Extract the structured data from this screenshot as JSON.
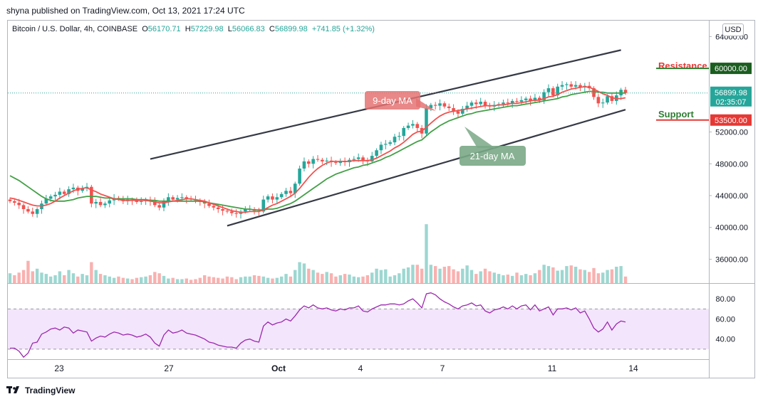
{
  "header": {
    "published": "shyna published on TradingView.com, Oct 13, 2021 17:24 UTC"
  },
  "legend": {
    "symbol": "Bitcoin / U.S. Dollar, 4h, COINBASE",
    "o_label": "O",
    "o": "56170.71",
    "h_label": "H",
    "h": "57229.98",
    "l_label": "L",
    "l": "56066.83",
    "c_label": "C",
    "c": "56899.98",
    "change": "+741.85 (+1.32%)"
  },
  "currency": "USD",
  "footer": {
    "brand": "TradingView",
    "logo": "tradingview-logo-icon"
  },
  "colors": {
    "up": "#26a69a",
    "down": "#ef5350",
    "ma9": "#ef5350",
    "ma21": "#43a047",
    "rsi": "#9c27b0",
    "rsi_band": "#f3e5fb",
    "resistance": "#e53935",
    "support": "#2e7d32",
    "price_badge": "#26a69a",
    "support_badge": "#e53935",
    "resistance_badge": "#1b5e20"
  },
  "annotations": {
    "resistance_label": "Resistance",
    "support_label": "Support",
    "ma9_label": "9-day MA",
    "ma21_label": "21-day MA"
  },
  "price_badges": {
    "current": "56899.98",
    "countdown": "02:35:07",
    "support": "53500.00",
    "resistance": "60000.00"
  },
  "chart_data": {
    "type": "candlestick",
    "timeframe": "4h",
    "xlabels": [
      "23",
      "27",
      "Oct",
      "4",
      "7",
      "11",
      "14"
    ],
    "ylim": [
      33000,
      66000
    ],
    "yticks": [
      "64000.00",
      "52000.00",
      "48000.00",
      "44000.00",
      "40000.00",
      "36000.00"
    ],
    "rsi_ylim": [
      20,
      95
    ],
    "rsi_ticks": [
      "80.00",
      "60.00",
      "40.00"
    ],
    "rsi_bands": [
      70,
      30
    ],
    "resistance": 60000,
    "support": 53500,
    "close": [
      43300,
      43100,
      42800,
      42300,
      42000,
      41700,
      42300,
      43000,
      43600,
      43900,
      44100,
      44500,
      44200,
      44800,
      45000,
      44600,
      44900,
      45100,
      43000,
      43200,
      42800,
      43000,
      43400,
      43700,
      43600,
      43300,
      43500,
      43400,
      43200,
      43300,
      43500,
      43300,
      42800,
      42500,
      43300,
      43800,
      43500,
      43700,
      43800,
      43600,
      43500,
      43400,
      43200,
      43000,
      42700,
      42500,
      42300,
      42100,
      42000,
      41800,
      41700,
      42000,
      42300,
      42300,
      42100,
      42000,
      43500,
      43900,
      43500,
      43800,
      44200,
      44600,
      44300,
      45500,
      47400,
      48300,
      48000,
      48600,
      48500,
      48300,
      48400,
      48200,
      48100,
      48300,
      48200,
      48500,
      48600,
      48800,
      48400,
      48300,
      49000,
      49700,
      50400,
      50500,
      50700,
      51400,
      51500,
      52500,
      52800,
      53000,
      52500,
      51800,
      55000,
      55400,
      55300,
      55600,
      55200,
      55000,
      54600,
      54300,
      54900,
      55300,
      55700,
      55500,
      55800,
      55300,
      55200,
      55400,
      55500,
      55700,
      55600,
      55900,
      55800,
      56000,
      56200,
      55900,
      56300,
      56000,
      57000,
      57500,
      56600,
      57700,
      57900,
      58000,
      57700,
      57900,
      57600,
      57800,
      57500,
      56400,
      55600,
      55700,
      56500,
      55900,
      56600,
      57300,
      56900
    ],
    "ma9": [
      43700,
      43600,
      43400,
      43200,
      43000,
      42800,
      42700,
      42700,
      42800,
      43000,
      43300,
      43700,
      44000,
      44300,
      44600,
      44800,
      44900,
      45000,
      44700,
      44500,
      44200,
      44000,
      43800,
      43600,
      43500,
      43400,
      43400,
      43400,
      43400,
      43400,
      43400,
      43300,
      43200,
      43100,
      43100,
      43200,
      43300,
      43400,
      43500,
      43600,
      43600,
      43500,
      43400,
      43300,
      43100,
      42900,
      42700,
      42500,
      42300,
      42100,
      42000,
      41900,
      41900,
      42000,
      42000,
      42000,
      42200,
      42500,
      42800,
      43000,
      43300,
      43600,
      43900,
      44300,
      44900,
      45600,
      46300,
      46900,
      47400,
      47800,
      48100,
      48300,
      48300,
      48300,
      48300,
      48300,
      48400,
      48400,
      48400,
      48400,
      48500,
      48700,
      49000,
      49300,
      49600,
      50000,
      50300,
      50700,
      51200,
      51700,
      52000,
      52100,
      52600,
      53100,
      53600,
      54000,
      54300,
      54500,
      54600,
      54700,
      54800,
      54900,
      55000,
      55100,
      55200,
      55300,
      55300,
      55300,
      55400,
      55400,
      55500,
      55600,
      55600,
      55700,
      55800,
      55900,
      56000,
      56000,
      56200,
      56400,
      56500,
      56700,
      57000,
      57200,
      57400,
      57500,
      57600,
      57700,
      57600,
      57400,
      57100,
      56800,
      56600,
      56300,
      56200,
      56200,
      56300
    ],
    "ma21": [
      46500,
      46200,
      45900,
      45500,
      45100,
      44700,
      44300,
      43900,
      43600,
      43400,
      43300,
      43300,
      43300,
      43400,
      43500,
      43700,
      43800,
      43900,
      43900,
      43900,
      43800,
      43700,
      43700,
      43600,
      43600,
      43600,
      43600,
      43600,
      43500,
      43500,
      43500,
      43400,
      43400,
      43300,
      43300,
      43300,
      43300,
      43300,
      43300,
      43300,
      43300,
      43300,
      43300,
      43200,
      43100,
      43000,
      42900,
      42800,
      42700,
      42600,
      42500,
      42400,
      42300,
      42300,
      42200,
      42200,
      42200,
      42300,
      42300,
      42400,
      42600,
      42800,
      43000,
      43300,
      43700,
      44100,
      44500,
      44900,
      45300,
      45700,
      46100,
      46400,
      46700,
      46900,
      47100,
      47300,
      47500,
      47600,
      47800,
      47900,
      48100,
      48300,
      48500,
      48800,
      49000,
      49300,
      49600,
      49900,
      50200,
      50500,
      50800,
      51000,
      51500,
      52000,
      52400,
      52800,
      53100,
      53400,
      53600,
      53800,
      54000,
      54200,
      54300,
      54500,
      54600,
      54700,
      54800,
      54900,
      55000,
      55100,
      55200,
      55300,
      55300,
      55400,
      55500,
      55600,
      55700,
      55800,
      55900,
      56000,
      56100,
      56200,
      56400,
      56500,
      56700,
      56800,
      56900,
      57000,
      57100,
      57100,
      57000,
      57000,
      56900,
      56900,
      56900,
      56900,
      56900
    ],
    "rsi": [
      31,
      31,
      28,
      22,
      26,
      36,
      37,
      45,
      47,
      50,
      51,
      49,
      52,
      51,
      46,
      49,
      48,
      47,
      38,
      41,
      43,
      42,
      45,
      47,
      46,
      44,
      45,
      44,
      42,
      43,
      45,
      42,
      36,
      33,
      44,
      49,
      46,
      47,
      49,
      46,
      45,
      44,
      42,
      40,
      37,
      36,
      34,
      33,
      32,
      32,
      31,
      36,
      39,
      40,
      38,
      37,
      53,
      57,
      54,
      56,
      57,
      60,
      58,
      63,
      69,
      73,
      71,
      74,
      71,
      70,
      71,
      69,
      68,
      70,
      69,
      71,
      71,
      73,
      68,
      67,
      70,
      72,
      74,
      74,
      75,
      75,
      74,
      75,
      78,
      80,
      76,
      71,
      85,
      86,
      84,
      80,
      77,
      75,
      72,
      70,
      73,
      74,
      76,
      73,
      74,
      68,
      66,
      69,
      70,
      72,
      70,
      73,
      70,
      73,
      74,
      69,
      74,
      68,
      70,
      72,
      64,
      70,
      70,
      71,
      69,
      71,
      66,
      68,
      60,
      51,
      47,
      50,
      57,
      49,
      55,
      58,
      57
    ],
    "volume": [
      0.15,
      0.12,
      0.16,
      0.2,
      0.34,
      0.18,
      0.22,
      0.16,
      0.14,
      0.1,
      0.12,
      0.18,
      0.12,
      0.2,
      0.15,
      0.1,
      0.14,
      0.12,
      0.32,
      0.2,
      0.14,
      0.12,
      0.1,
      0.08,
      0.1,
      0.08,
      0.07,
      0.06,
      0.08,
      0.09,
      0.1,
      0.12,
      0.17,
      0.15,
      0.11,
      0.07,
      0.08,
      0.06,
      0.06,
      0.07,
      0.05,
      0.06,
      0.08,
      0.12,
      0.1,
      0.09,
      0.08,
      0.07,
      0.1,
      0.09,
      0.06,
      0.09,
      0.1,
      0.1,
      0.12,
      0.11,
      0.1,
      0.08,
      0.07,
      0.08,
      0.1,
      0.14,
      0.1,
      0.2,
      0.32,
      0.3,
      0.22,
      0.2,
      0.16,
      0.14,
      0.17,
      0.15,
      0.1,
      0.12,
      0.14,
      0.13,
      0.1,
      0.09,
      0.1,
      0.12,
      0.16,
      0.22,
      0.2,
      0.21,
      0.1,
      0.12,
      0.15,
      0.22,
      0.24,
      0.28,
      0.28,
      0.22,
      0.9,
      0.28,
      0.26,
      0.22,
      0.25,
      0.26,
      0.21,
      0.18,
      0.22,
      0.27,
      0.2,
      0.14,
      0.18,
      0.22,
      0.18,
      0.16,
      0.14,
      0.12,
      0.13,
      0.11,
      0.16,
      0.12,
      0.14,
      0.12,
      0.15,
      0.2,
      0.28,
      0.26,
      0.24,
      0.19,
      0.2,
      0.26,
      0.27,
      0.25,
      0.21,
      0.2,
      0.17,
      0.23,
      0.15,
      0.16,
      0.2,
      0.21,
      0.25,
      0.26,
      0.1
    ],
    "channel": {
      "upper": {
        "from": [
          31,
          48600
        ],
        "to": [
          135,
          62300
        ]
      },
      "lower": {
        "from": [
          48,
          40200
        ],
        "to": [
          136,
          54800
        ]
      }
    }
  }
}
